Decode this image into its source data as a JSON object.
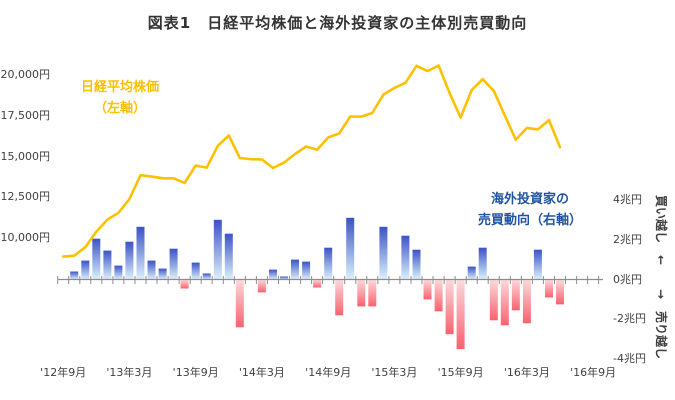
{
  "title": "図表1　日経平均株価と海外投資家の主体別売買動向",
  "annotations": {
    "line_label_line1": "日経平均株価",
    "line_label_line2": "（左軸）",
    "bar_label_line1": "海外投資家の",
    "bar_label_line2": "売買動向（右軸）",
    "right_side_rotated_text": "買い越し　←　　→　売り越し",
    "right_side_top_meaning": "買い越し",
    "right_side_bottom_meaning": "売り越し"
  },
  "colors": {
    "nikkei_line": "#FFC000",
    "bar_positive_top": "#3B53C6",
    "bar_positive_bottom": "#DCF1FB",
    "bar_negative_top": "#FCD9DC",
    "bar_negative_bottom": "#F8626F",
    "axis": "#8C8C8C",
    "text": "#404040",
    "title_text": "#333333",
    "bar_annotation_text": "#2153A3"
  },
  "chart_data": {
    "type": "combo: line + bar",
    "grid": false,
    "n_month_slots_on_axis": 49,
    "months": [
      "2012-09",
      "2012-10",
      "2012-11",
      "2012-12",
      "2013-01",
      "2013-02",
      "2013-03",
      "2013-04",
      "2013-05",
      "2013-06",
      "2013-07",
      "2013-08",
      "2013-09",
      "2013-10",
      "2013-11",
      "2013-12",
      "2014-01",
      "2014-02",
      "2014-03",
      "2014-04",
      "2014-05",
      "2014-06",
      "2014-07",
      "2014-08",
      "2014-09",
      "2014-10",
      "2014-11",
      "2014-12",
      "2015-01",
      "2015-02",
      "2015-03",
      "2015-04",
      "2015-05",
      "2015-06",
      "2015-07",
      "2015-08",
      "2015-09",
      "2015-10",
      "2015-11",
      "2015-12",
      "2016-01",
      "2016-02",
      "2016-03",
      "2016-04",
      "2016-05",
      "2016-06"
    ],
    "x_axis": {
      "tick_labels": [
        "'12年9月",
        "'13年3月",
        "'13年9月",
        "'14年3月",
        "'14年9月",
        "'15年3月",
        "'15年9月",
        "'16年3月",
        "'16年9月"
      ],
      "label_slot_indices": [
        0,
        6,
        12,
        18,
        24,
        30,
        36,
        42,
        48
      ],
      "minor_tick_every": "1 month"
    },
    "left_axis": {
      "title": "日経平均株価（左軸）",
      "unit": "円",
      "tick_labels": [
        "20,000円",
        "17,500円",
        "15,000円",
        "12,500円",
        "10,000円"
      ],
      "tick_values": [
        20000,
        17500,
        15000,
        12500,
        10000
      ]
    },
    "right_axis": {
      "title": "海外投資家の売買動向（右軸）",
      "unit": "兆円",
      "tick_labels": [
        "4兆円",
        "2兆円",
        "0兆円",
        "-2兆円",
        "-4兆円"
      ],
      "tick_values": [
        4,
        2,
        0,
        -2,
        -4
      ]
    },
    "series": [
      {
        "name": "日経平均株価（左軸）",
        "type": "line",
        "axis": "left",
        "unit": "円",
        "values": [
          8870,
          8928,
          9446,
          10395,
          11139,
          11559,
          12398,
          13861,
          13775,
          13677,
          13668,
          13389,
          14456,
          14328,
          15662,
          16291,
          14915,
          14841,
          14828,
          14304,
          14632,
          15162,
          15621,
          15425,
          16174,
          16414,
          17460,
          17451,
          17674,
          18798,
          19207,
          19520,
          20563,
          20236,
          20585,
          18890,
          17388,
          19083,
          19747,
          19034,
          17518,
          16027,
          16759,
          16666,
          17235,
          15576
        ]
      },
      {
        "name": "海外投資家の売買動向（右軸）",
        "type": "bar",
        "axis": "right",
        "unit": "兆円",
        "values": [
          0,
          0.4,
          0.95,
          2.05,
          1.45,
          0.7,
          1.9,
          2.65,
          0.95,
          0.55,
          1.55,
          -0.45,
          0.85,
          0.3,
          3.0,
          2.3,
          -2.4,
          0,
          -0.65,
          0.5,
          0.15,
          1.0,
          0.9,
          -0.4,
          1.6,
          -1.8,
          3.1,
          -1.35,
          -1.35,
          2.65,
          0,
          2.2,
          1.5,
          -1.0,
          -1.6,
          -2.75,
          -3.5,
          0.65,
          1.6,
          -2.05,
          -2.3,
          -1.55,
          -2.2,
          1.5,
          -0.9,
          -1.25
        ]
      }
    ]
  }
}
